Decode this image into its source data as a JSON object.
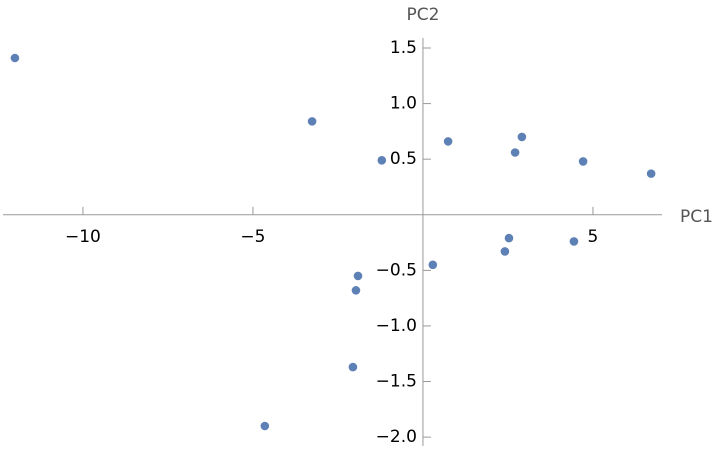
{
  "chart_data": {
    "type": "scatter",
    "x_label": "PC1",
    "y_label": "PC2",
    "color": "#5e81b5",
    "x": [
      -12.0,
      -3.26,
      -1.21,
      0.74,
      2.91,
      2.71,
      4.71,
      6.71,
      2.53,
      4.44,
      2.41,
      0.29,
      -1.91,
      -1.97,
      -2.06,
      -4.65
    ],
    "y": [
      1.41,
      0.84,
      0.49,
      0.66,
      0.7,
      0.56,
      0.48,
      0.37,
      -0.21,
      -0.24,
      -0.33,
      -0.45,
      -0.55,
      -0.68,
      -1.37,
      -1.9
    ],
    "xlim": [
      -12.35,
      7.03
    ],
    "ylim": [
      -2.08,
      1.59
    ],
    "xticks": [
      {
        "value": -10,
        "label": "−10"
      },
      {
        "value": -5,
        "label": "−5"
      },
      5
    ],
    "yticks": [
      {
        "value": -2,
        "label": "−2.0"
      },
      {
        "value": -1.5,
        "label": "−1.5"
      },
      {
        "value": -1,
        "label": "−1.0"
      },
      {
        "value": -0.5,
        "label": "−0.5"
      },
      0.5,
      {
        "value": 1,
        "label": "1.0"
      },
      1.5
    ]
  }
}
